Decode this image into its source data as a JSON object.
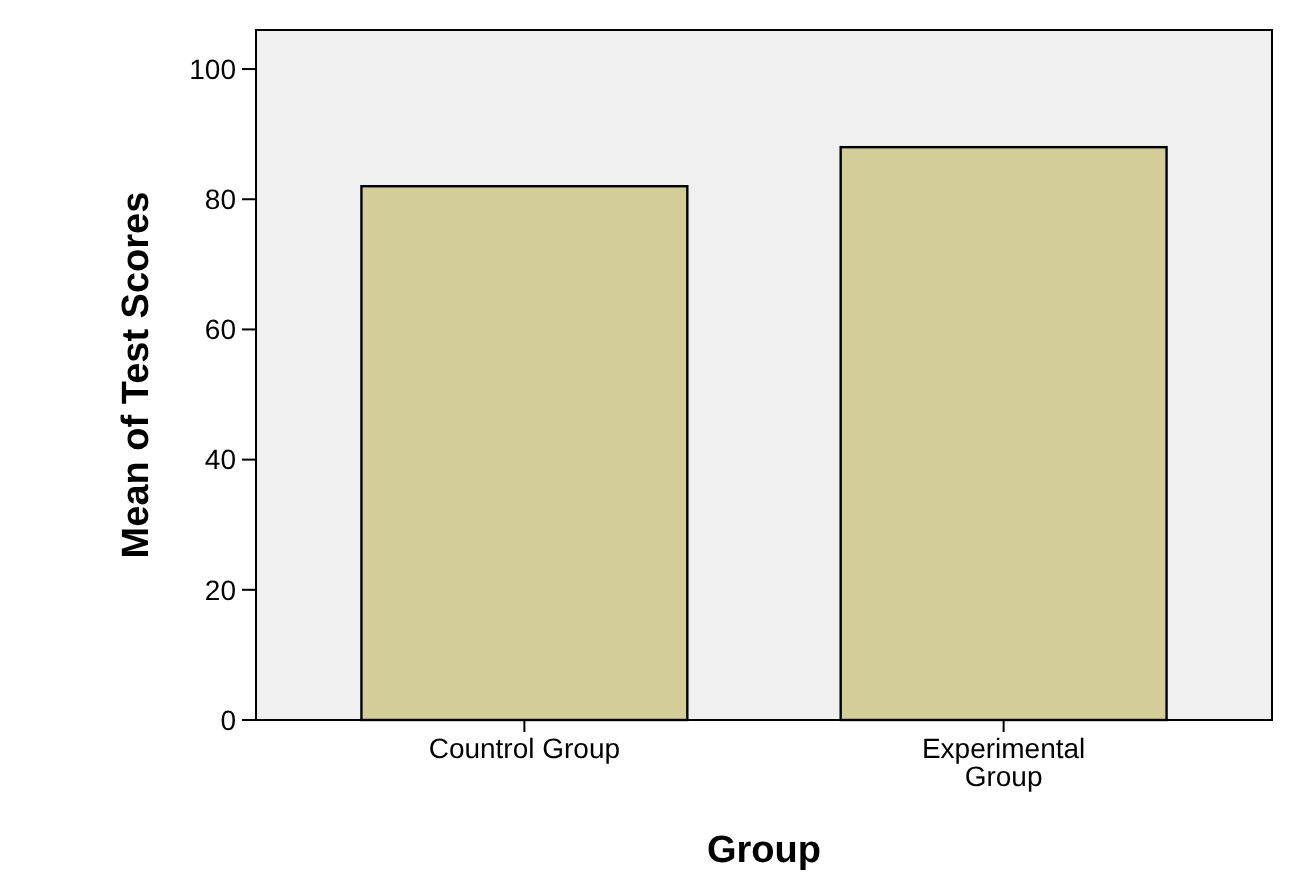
{
  "chart_data": {
    "type": "bar",
    "xlabel": "Group",
    "ylabel": "Mean of Test Scores",
    "categories": [
      "Countrol Group",
      "Experimental Group"
    ],
    "values": [
      82,
      88
    ],
    "color": "#d3ce97",
    "ylim": [
      0,
      106
    ],
    "yticks": [
      0,
      20,
      40,
      60,
      80,
      100
    ],
    "grid": false
  }
}
